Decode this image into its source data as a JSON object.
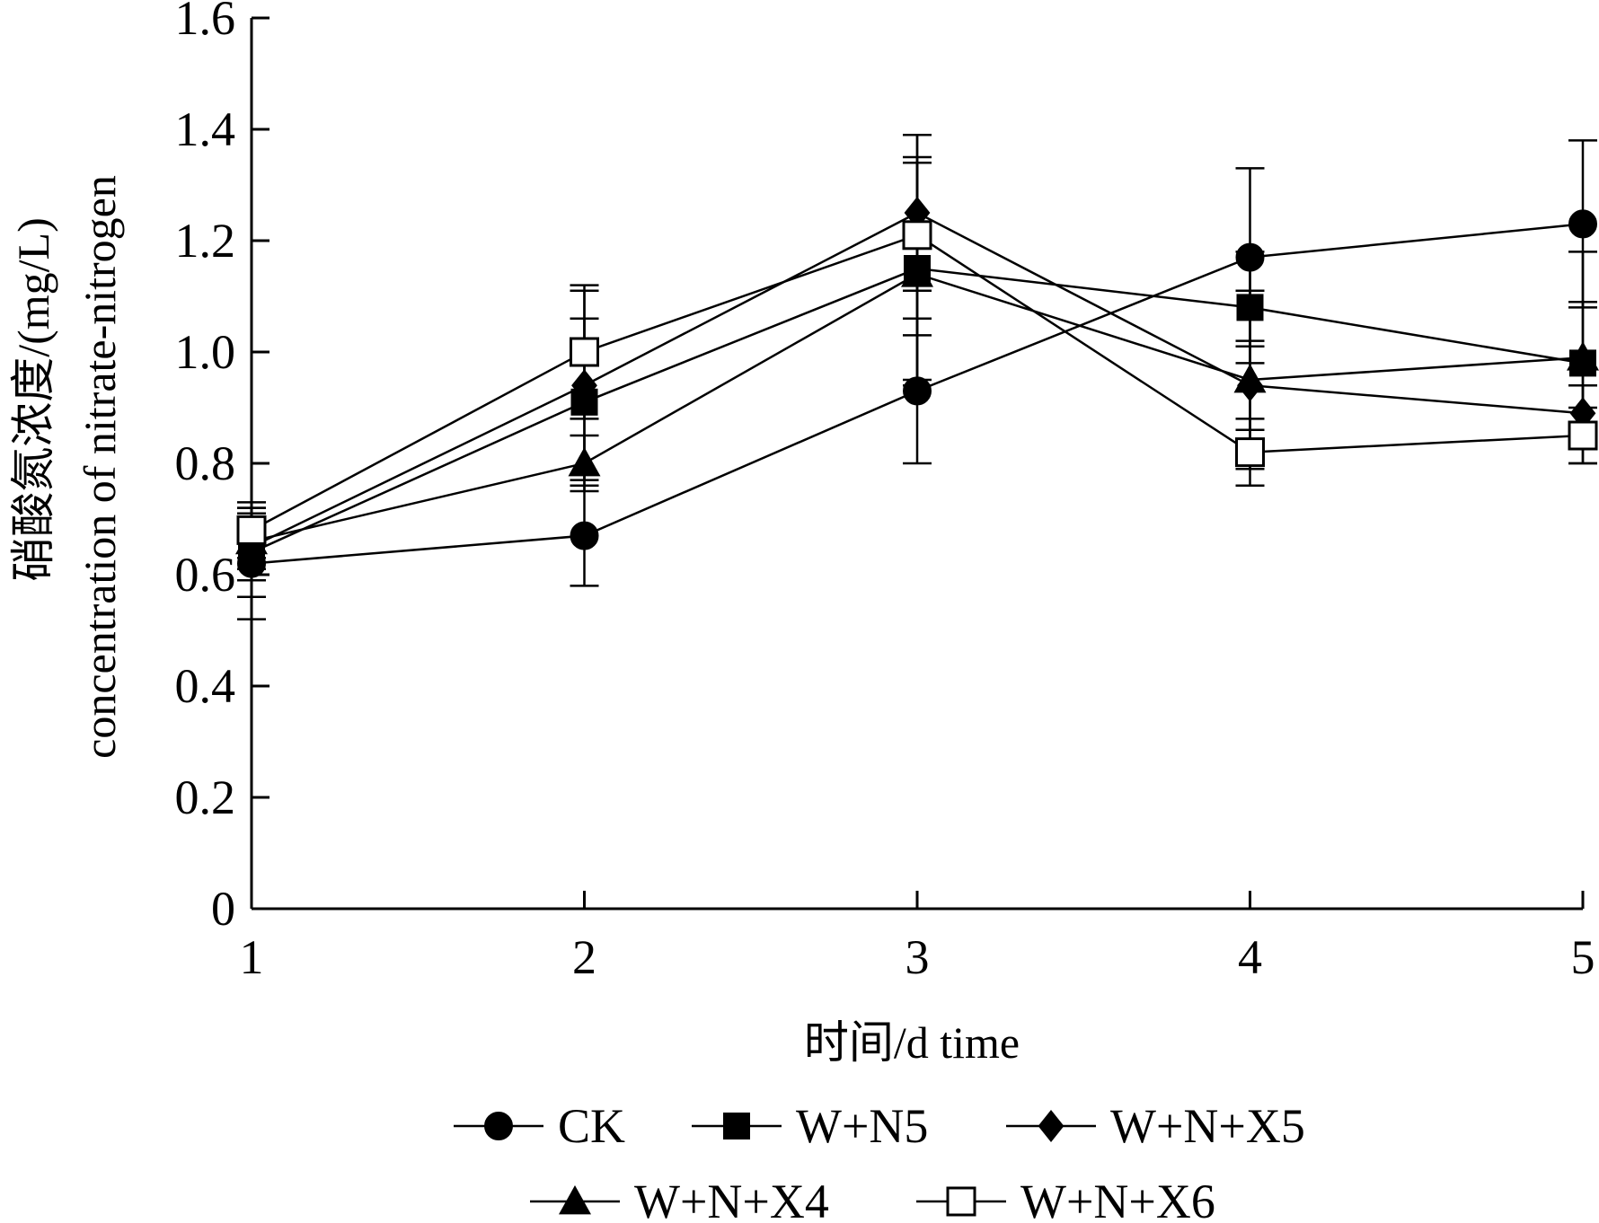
{
  "chart_data": {
    "type": "line",
    "x": [
      1,
      2,
      3,
      4,
      5
    ],
    "xlabel": "时间/d time",
    "ylabel_line1": "硝酸氮浓度/(mg/L)",
    "ylabel_line2": "concentration of nitrate-nitrogen",
    "xlim": [
      1,
      5
    ],
    "ylim": [
      0,
      1.6
    ],
    "xticks": [
      "1",
      "2",
      "3",
      "4",
      "5"
    ],
    "yticks": [
      "0",
      "0.2",
      "0.4",
      "0.6",
      "0.8",
      "1.0",
      "1.2",
      "1.4",
      "1.6"
    ],
    "grid": false,
    "legend_position": "bottom",
    "series": [
      {
        "name": "CK",
        "marker": "filled-circle",
        "values": [
          0.62,
          0.67,
          0.93,
          1.17,
          1.23
        ],
        "error": [
          0.1,
          0.09,
          0.13,
          0.16,
          0.15
        ]
      },
      {
        "name": "W+N5",
        "marker": "filled-square",
        "values": [
          0.64,
          0.91,
          1.15,
          1.08,
          0.98
        ],
        "error": [
          0.08,
          0.15,
          0.2,
          0.1,
          0.11
        ]
      },
      {
        "name": "W+N+X5",
        "marker": "filled-diamond",
        "values": [
          0.65,
          0.94,
          1.25,
          0.94,
          0.89
        ],
        "error": [
          0.06,
          0.17,
          0.14,
          0.08,
          0.05
        ]
      },
      {
        "name": "W+N+X4",
        "marker": "filled-triangle",
        "values": [
          0.66,
          0.8,
          1.14,
          0.95,
          0.99
        ],
        "error": [
          0.05,
          0.05,
          0.2,
          0.16,
          0.19
        ]
      },
      {
        "name": "W+N+X6",
        "marker": "open-square",
        "values": [
          0.68,
          1.0,
          1.21,
          0.82,
          0.85
        ],
        "error": [
          0.05,
          0.12,
          0.18,
          0.06,
          0.05
        ]
      }
    ]
  }
}
